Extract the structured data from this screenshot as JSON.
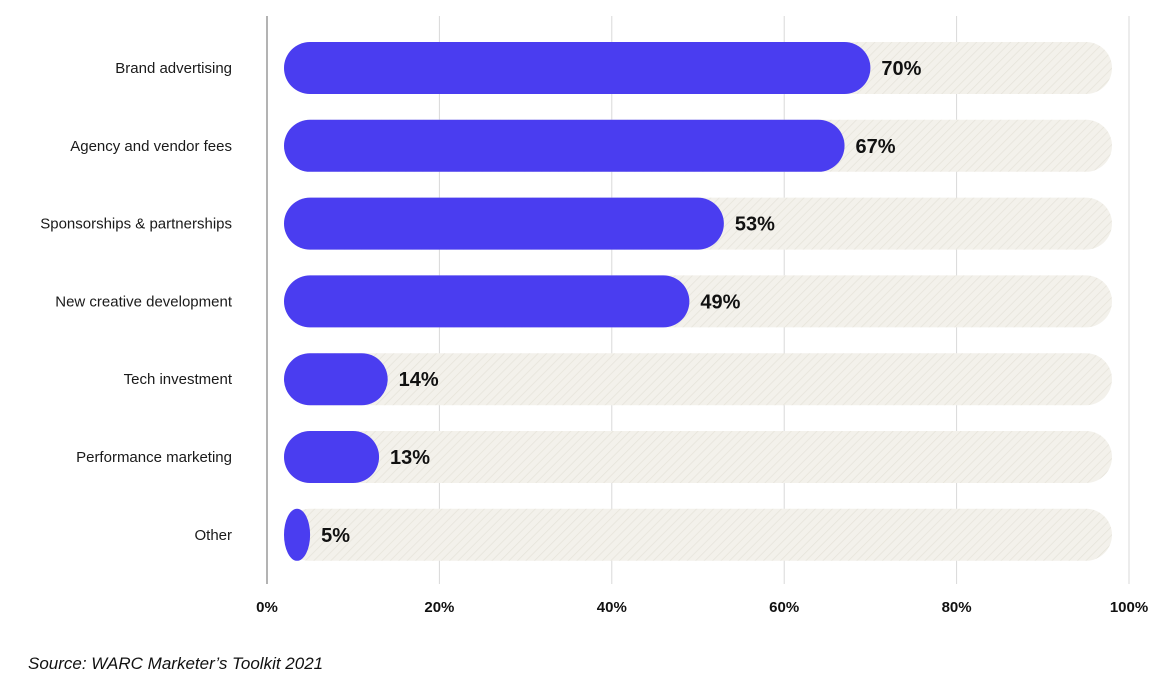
{
  "chart_data": {
    "type": "bar",
    "orientation": "horizontal",
    "categories": [
      "Brand advertising",
      "Agency and vendor fees",
      "Sponsorships & partnerships",
      "New creative development",
      "Tech investment",
      "Performance marketing",
      "Other"
    ],
    "values": [
      70,
      67,
      53,
      49,
      14,
      13,
      5
    ],
    "value_labels": [
      "70%",
      "67%",
      "53%",
      "49%",
      "14%",
      "13%",
      "5%"
    ],
    "xlim": [
      0,
      100
    ],
    "xticks": [
      0,
      20,
      40,
      60,
      80,
      100
    ],
    "xtick_labels": [
      "0%",
      "20%",
      "40%",
      "60%",
      "80%",
      "100%"
    ],
    "grid": true,
    "title": "",
    "xlabel": "",
    "ylabel": ""
  },
  "colors": {
    "bar": "#4a3df0",
    "track": "#f2f0ea",
    "grid": "#d9d9d9",
    "axis": "#9a9a9a"
  },
  "source": "Source: WARC Marketer’s Toolkit 2021"
}
